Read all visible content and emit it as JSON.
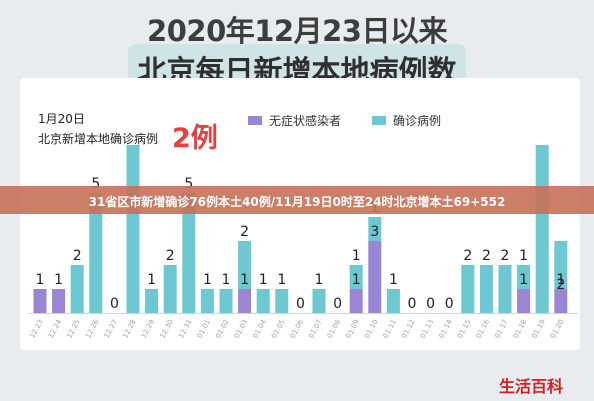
{
  "header": {
    "title_line1": "2020年12月23日以来",
    "title_line2": "北京每日新增本地病例数"
  },
  "annotation": {
    "date": "1月20日",
    "label": "北京新增本地确诊病例",
    "value": "2例"
  },
  "overlay": {
    "text": "31省区市新增确诊76例本土40例/11月19日0时至24时北京增本土69+552"
  },
  "watermark": "生活百科",
  "colors": {
    "asymptomatic": "#9b86d6",
    "confirmed": "#6ec8d2",
    "highlight": "#e8403c"
  },
  "chart_data": {
    "type": "bar",
    "stacked": true,
    "categories": [
      "12.23",
      "12.24",
      "12.25",
      "12.26",
      "12.27",
      "12.28",
      "12.29",
      "12.30",
      "12.31",
      "01.01",
      "01.02",
      "01.03",
      "01.04",
      "01.05",
      "01.06",
      "01.07",
      "01.08",
      "01.09",
      "01.10",
      "01.11",
      "01.12",
      "01.13",
      "01.14",
      "01.15",
      "01.16",
      "01.17",
      "01.18",
      "01.19",
      "01.20"
    ],
    "series": [
      {
        "name": "无症状感染者",
        "values": [
          1,
          1,
          0,
          0,
          0,
          0,
          0,
          0,
          0,
          0,
          0,
          1,
          0,
          0,
          0,
          0,
          0,
          1,
          3,
          0,
          0,
          0,
          0,
          0,
          0,
          0,
          1,
          0,
          1
        ]
      },
      {
        "name": "确诊病例",
        "values": [
          0,
          0,
          2,
          5,
          0,
          7,
          1,
          2,
          5,
          1,
          1,
          2,
          1,
          1,
          0,
          1,
          0,
          1,
          1,
          1,
          0,
          0,
          0,
          2,
          2,
          2,
          1,
          7,
          2
        ]
      }
    ],
    "top_labels": [
      "1",
      "1",
      "2",
      "5",
      "0",
      "",
      "1",
      "2",
      "5",
      "1",
      "1",
      "2",
      "1",
      "1",
      "0",
      "1",
      "0",
      "1",
      "1",
      "1",
      "0",
      "0",
      "0",
      "2",
      "2",
      "2",
      "1",
      "",
      ""
    ],
    "stack_labels": [
      "",
      "",
      "",
      "",
      "",
      "",
      "",
      "",
      "",
      "",
      "",
      "1",
      "",
      "",
      "",
      "",
      "",
      "1",
      "3",
      "",
      "",
      "",
      "",
      "",
      "",
      "",
      "1",
      "",
      "1"
    ],
    "bottom_labels": [
      "",
      "",
      "",
      "",
      "",
      "",
      "",
      "",
      "",
      "",
      "",
      "",
      "",
      "",
      "",
      "",
      "",
      "",
      "",
      "",
      "",
      "",
      "",
      "",
      "",
      "",
      "",
      "",
      "2"
    ],
    "ylim": [
      0,
      8
    ],
    "legend": [
      "无症状感染者",
      "确诊病例"
    ],
    "legend_position": "top-right"
  }
}
